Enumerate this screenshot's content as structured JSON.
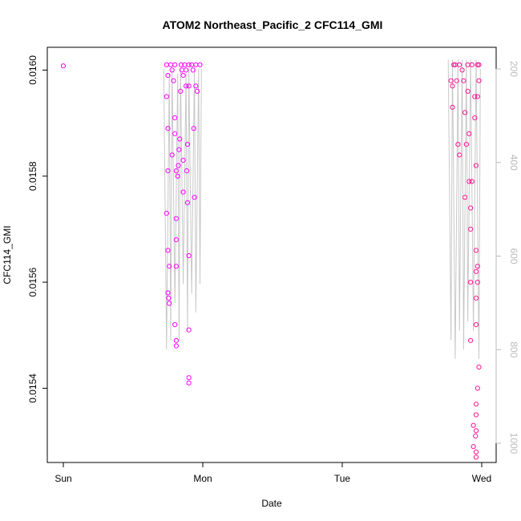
{
  "chart_data": {
    "type": "scatter",
    "title": "ATOM2 Northeast_Pacific_2 CFC114_GMI",
    "xlabel": "Date",
    "ylabel": "CFC114_GMI",
    "x_ticks": [
      "Sun",
      "Mon",
      "Tue",
      "Wed"
    ],
    "y_ticks": [
      "0.0154",
      "0.0156",
      "0.0158",
      "0.0160"
    ],
    "y_right_ticks": [
      "200",
      "400",
      "600",
      "800",
      "1000"
    ],
    "xlim_days": [
      -0.04,
      3.12
    ],
    "ylim": [
      0.01526,
      0.016043
    ],
    "y_right_lim": [
      200,
      1000
    ],
    "grid": false,
    "colors": {
      "points": "#ff00ff",
      "points_alt": "#ff1493",
      "pressure_line": "#c8c8c8",
      "right_axis": "#bbbbbb"
    },
    "series": [
      {
        "marker": "open-circle",
        "points": [
          [
            0.0,
            0.016008
          ],
          [
            0.74,
            0.01601
          ],
          [
            0.75,
            0.01599
          ],
          [
            0.74,
            0.01595
          ],
          [
            0.75,
            0.01589
          ],
          [
            0.75,
            0.01581
          ],
          [
            0.74,
            0.01573
          ],
          [
            0.75,
            0.01566
          ],
          [
            0.76,
            0.01563
          ],
          [
            0.75,
            0.01558
          ],
          [
            0.755,
            0.01557
          ],
          [
            0.76,
            0.01556
          ],
          [
            0.77,
            0.01601
          ],
          [
            0.78,
            0.016
          ],
          [
            0.78,
            0.01584
          ],
          [
            0.79,
            0.01598
          ],
          [
            0.8,
            0.01601
          ],
          [
            0.8,
            0.01591
          ],
          [
            0.8,
            0.01588
          ],
          [
            0.81,
            0.01581
          ],
          [
            0.81,
            0.01572
          ],
          [
            0.81,
            0.01568
          ],
          [
            0.81,
            0.01563
          ],
          [
            0.8,
            0.01552
          ],
          [
            0.81,
            0.01549
          ],
          [
            0.81,
            0.01548
          ],
          [
            0.82,
            0.0158
          ],
          [
            0.825,
            0.01582
          ],
          [
            0.83,
            0.01585
          ],
          [
            0.835,
            0.01587
          ],
          [
            0.84,
            0.01596
          ],
          [
            0.845,
            0.01601
          ],
          [
            0.85,
            0.016
          ],
          [
            0.86,
            0.01599
          ],
          [
            0.86,
            0.01577
          ],
          [
            0.86,
            0.01583
          ],
          [
            0.87,
            0.01601
          ],
          [
            0.88,
            0.016
          ],
          [
            0.88,
            0.01597
          ],
          [
            0.885,
            0.01581
          ],
          [
            0.89,
            0.01575
          ],
          [
            0.89,
            0.01586
          ],
          [
            0.9,
            0.01601
          ],
          [
            0.9,
            0.01597
          ],
          [
            0.9,
            0.01565
          ],
          [
            0.9,
            0.01551
          ],
          [
            0.9,
            0.01542
          ],
          [
            0.9,
            0.01541
          ],
          [
            0.92,
            0.01601
          ],
          [
            0.93,
            0.016
          ],
          [
            0.935,
            0.01589
          ],
          [
            0.94,
            0.01576
          ],
          [
            0.95,
            0.01601
          ],
          [
            0.95,
            0.01597
          ],
          [
            0.96,
            0.01596
          ],
          [
            0.98,
            0.01601
          ],
          [
            2.78,
            0.01598
          ],
          [
            2.79,
            0.01597
          ],
          [
            2.79,
            0.01593
          ],
          [
            2.8,
            0.01601
          ],
          [
            2.81,
            0.01601
          ],
          [
            2.82,
            0.01598
          ],
          [
            2.83,
            0.01586
          ],
          [
            2.84,
            0.01584
          ],
          [
            2.84,
            0.01601
          ],
          [
            2.86,
            0.016
          ],
          [
            2.87,
            0.01598
          ],
          [
            2.88,
            0.01592
          ],
          [
            2.88,
            0.01576
          ],
          [
            2.89,
            0.01586
          ],
          [
            2.9,
            0.01596
          ],
          [
            2.9,
            0.01601
          ],
          [
            2.91,
            0.01588
          ],
          [
            2.91,
            0.01579
          ],
          [
            2.92,
            0.01574
          ],
          [
            2.92,
            0.0157
          ],
          [
            2.92,
            0.0156
          ],
          [
            2.92,
            0.01549
          ],
          [
            2.93,
            0.01601
          ],
          [
            2.93,
            0.01579
          ],
          [
            2.94,
            0.01533
          ],
          [
            2.94,
            0.01529
          ],
          [
            2.95,
            0.01595
          ],
          [
            2.95,
            0.01591
          ],
          [
            2.96,
            0.01582
          ],
          [
            2.96,
            0.01557
          ],
          [
            2.96,
            0.01552
          ],
          [
            2.97,
            0.01595
          ],
          [
            2.97,
            0.01601
          ],
          [
            2.98,
            0.01598
          ],
          [
            2.98,
            0.01544
          ],
          [
            2.97,
            0.0154
          ],
          [
            2.96,
            0.01537
          ],
          [
            2.96,
            0.01535
          ],
          [
            2.96,
            0.01532
          ],
          [
            2.955,
            0.01531
          ],
          [
            2.96,
            0.01528
          ],
          [
            2.96,
            0.01527
          ],
          [
            2.96,
            0.01562
          ],
          [
            2.96,
            0.01566
          ],
          [
            2.97,
            0.0156
          ],
          [
            2.97,
            0.01563
          ],
          [
            2.98,
            0.01601
          ]
        ]
      }
    ],
    "pressure_line_hpa": [
      [
        0.72,
        200
      ],
      [
        0.74,
        800
      ],
      [
        0.76,
        210
      ],
      [
        0.77,
        780
      ],
      [
        0.78,
        200
      ],
      [
        0.8,
        700
      ],
      [
        0.82,
        210
      ],
      [
        0.83,
        780
      ],
      [
        0.84,
        200
      ],
      [
        0.86,
        660
      ],
      [
        0.88,
        210
      ],
      [
        0.89,
        760
      ],
      [
        0.9,
        200
      ],
      [
        0.92,
        680
      ],
      [
        0.94,
        200
      ],
      [
        0.95,
        720
      ],
      [
        0.97,
        200
      ],
      [
        0.98,
        660
      ],
      [
        0.99,
        200
      ],
      [
        2.76,
        180
      ],
      [
        2.78,
        780
      ],
      [
        2.79,
        180
      ],
      [
        2.81,
        820
      ],
      [
        2.83,
        180
      ],
      [
        2.84,
        760
      ],
      [
        2.86,
        180
      ],
      [
        2.87,
        800
      ],
      [
        2.89,
        180
      ],
      [
        2.9,
        740
      ],
      [
        2.92,
        180
      ],
      [
        2.94,
        760
      ],
      [
        2.96,
        180
      ],
      [
        2.98,
        820
      ],
      [
        2.99,
        200
      ]
    ]
  }
}
